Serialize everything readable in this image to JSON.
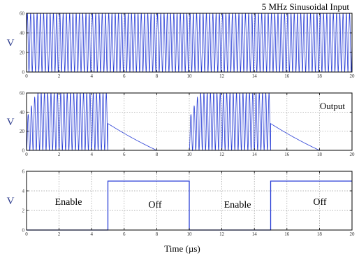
{
  "colors": {
    "signal": "#2a3fd6",
    "axis": "#000000",
    "grid": "#9a9a9a",
    "ylabel": "#2b3a8c"
  },
  "chart_data": [
    {
      "type": "line",
      "title": "",
      "annotation": "5 MHz Sinusoidal Input",
      "xlabel": "",
      "ylabel": "V",
      "xlim": [
        0,
        20
      ],
      "ylim": [
        0,
        60
      ],
      "xticks": [
        "0",
        "2",
        "4",
        "6",
        "8",
        "10",
        "12",
        "14",
        "16",
        "18",
        "20"
      ],
      "yticks": [
        "0",
        "20",
        "40",
        "60"
      ],
      "grid": true,
      "series": [
        {
          "description": "sinusoid, frequency 5 MHz, oscillating between 0 and 60 V over 0-20 µs",
          "frequency_mhz": 5,
          "min": 0,
          "max": 60,
          "x": [
            0,
            20
          ],
          "y_range": [
            0,
            60
          ]
        }
      ]
    },
    {
      "type": "line",
      "title": "",
      "annotation": "Output",
      "xlabel": "",
      "ylabel": "V",
      "xlim": [
        0,
        20
      ],
      "ylim": [
        0,
        60
      ],
      "xticks": [
        "0",
        "2",
        "4",
        "6",
        "8",
        "10",
        "12",
        "14",
        "16",
        "18",
        "20"
      ],
      "yticks": [
        "0",
        "20",
        "40",
        "60"
      ],
      "grid": true,
      "series": [
        {
          "description": "sinusoid gated on from 0-5 µs and 10-15 µs, peak ~60 V (ramps up from 0 at start of each burst); after each burst decays roughly linearly to 0 by ~8 µs and ~18 µs",
          "bursts": [
            [
              0,
              5
            ],
            [
              10,
              15
            ]
          ],
          "decays": [
            {
              "from_x": 5,
              "from_y": 28,
              "to_x": 8,
              "to_y": 0
            },
            {
              "from_x": 15,
              "from_y": 28,
              "to_x": 18,
              "to_y": 0
            }
          ]
        }
      ]
    },
    {
      "type": "line",
      "title": "",
      "xlabel": "Time (µs)",
      "ylabel": "V",
      "xlim": [
        0,
        20
      ],
      "ylim": [
        0,
        6
      ],
      "xticks": [
        "0",
        "2",
        "4",
        "6",
        "8",
        "10",
        "12",
        "14",
        "16",
        "18",
        "20"
      ],
      "yticks": [
        "0",
        "2",
        "4",
        "6"
      ],
      "grid": true,
      "annotations": [
        "Enable",
        "Off",
        "Enable",
        "Off"
      ],
      "series": [
        {
          "description": "square wave: 0 V 0-5 µs, 5 V 5-10 µs, 0 V 10-15 µs, 5 V 15-20 µs",
          "x": [
            0,
            5,
            5,
            10,
            10,
            15,
            15,
            20
          ],
          "y": [
            0,
            0,
            5,
            5,
            0,
            0,
            5,
            5
          ]
        }
      ]
    }
  ]
}
